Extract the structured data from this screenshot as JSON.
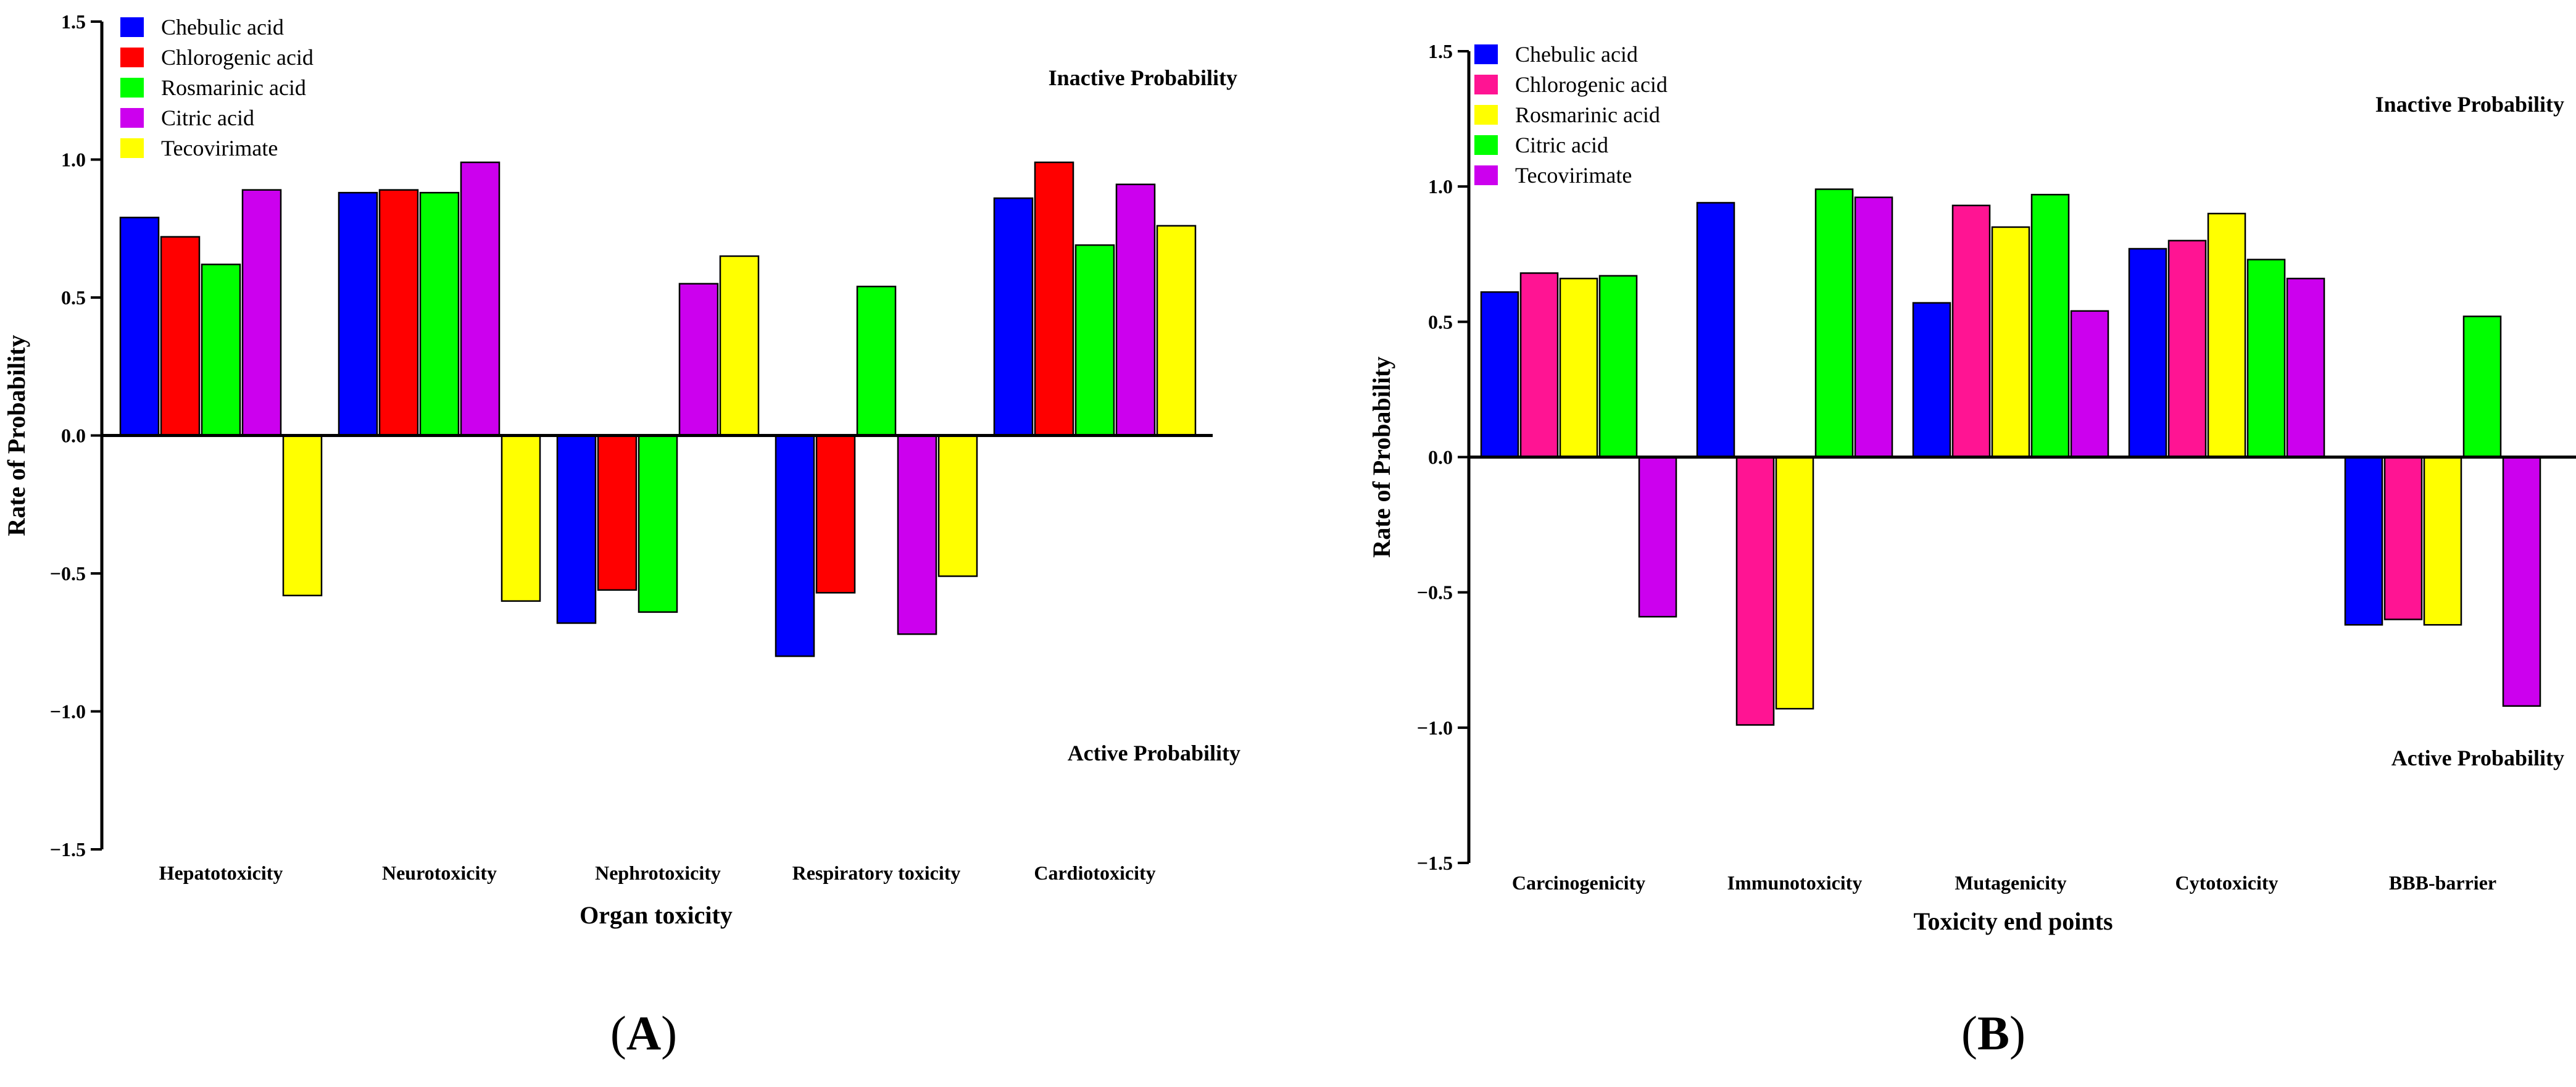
{
  "chart_data": [
    {
      "type": "bar",
      "panel_label": "A",
      "categories": [
        "Hepatotoxicity",
        "Neurotoxicity",
        "Nephrotoxicity",
        "Respiratory toxicity",
        "Cardiotoxicity"
      ],
      "series": [
        {
          "name": "Chebulic acid",
          "color": "#0000ff",
          "values": [
            0.79,
            0.88,
            -0.68,
            -0.8,
            0.86
          ]
        },
        {
          "name": "Chlorogenic acid",
          "color": "#ff0000",
          "values": [
            0.72,
            0.89,
            -0.56,
            -0.57,
            0.99
          ]
        },
        {
          "name": "Rosmarinic acid",
          "color": "#00ff00",
          "values": [
            0.62,
            0.88,
            -0.64,
            0.54,
            0.69
          ]
        },
        {
          "name": "Citric acid",
          "color": "#cc00ee",
          "values": [
            0.89,
            0.99,
            0.55,
            -0.72,
            0.91
          ]
        },
        {
          "name": "Tecovirimate",
          "color": "#ffff00",
          "values": [
            -0.58,
            -0.6,
            0.65,
            -0.51,
            0.76
          ]
        }
      ],
      "xlabel": "Organ toxicity",
      "ylabel": "Rate of Probability",
      "ylim": [
        -1.5,
        1.5
      ],
      "yticks": [
        "1.5",
        "1.0",
        "0.5",
        "0.0",
        "−0.5",
        "−1.0",
        "−1.5"
      ],
      "annotations": {
        "upper": "Inactive Probability",
        "lower": "Active Probability"
      },
      "legend_position": "top-left"
    },
    {
      "type": "bar",
      "panel_label": "B",
      "categories": [
        "Carcinogenicity",
        "Immunotoxicity",
        "Mutagenicity",
        "Cytotoxicity",
        "BBB-barrier"
      ],
      "series": [
        {
          "name": "Chebulic acid",
          "color": "#0000ff",
          "values": [
            0.61,
            0.94,
            0.57,
            0.77,
            -0.62
          ]
        },
        {
          "name": "Chlorogenic acid",
          "color": "#ff1493",
          "values": [
            0.68,
            -0.99,
            0.93,
            0.8,
            -0.6
          ]
        },
        {
          "name": "Rosmarinic acid",
          "color": "#ffff00",
          "values": [
            0.66,
            -0.93,
            0.85,
            0.9,
            -0.62
          ]
        },
        {
          "name": "Citric acid",
          "color": "#00ff00",
          "values": [
            0.67,
            0.99,
            0.97,
            0.73,
            0.52
          ]
        },
        {
          "name": "Tecovirimate",
          "color": "#cc00ee",
          "values": [
            -0.59,
            0.96,
            0.54,
            0.66,
            -0.92
          ]
        }
      ],
      "xlabel": "Toxicity end points",
      "ylabel": "Rate of Probability",
      "ylim": [
        -1.5,
        1.5
      ],
      "yticks": [
        "1.5",
        "1.0",
        "0.5",
        "0.0",
        "−0.5",
        "−1.0",
        "−1.5"
      ],
      "annotations": {
        "upper": "Inactive Probability",
        "lower": "Active Probability"
      },
      "legend_position": "top-left"
    }
  ]
}
